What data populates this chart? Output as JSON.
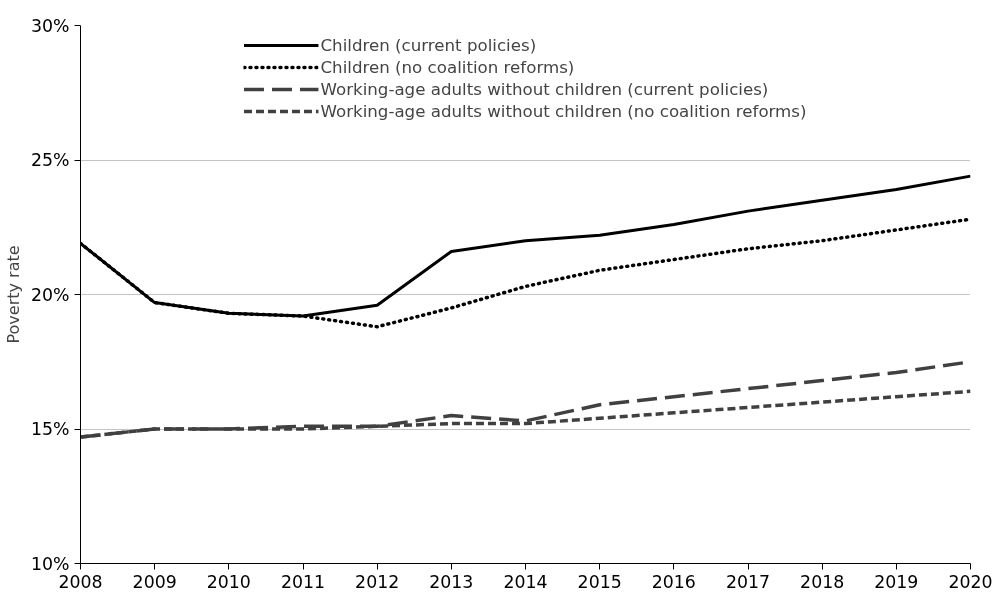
{
  "chart_data": {
    "type": "line",
    "ylabel": "Poverty rate",
    "x": [
      2008,
      2009,
      2010,
      2011,
      2012,
      2013,
      2014,
      2015,
      2016,
      2017,
      2018,
      2019,
      2020
    ],
    "xlim": [
      2008,
      2020
    ],
    "xticks": [
      2008,
      2009,
      2010,
      2011,
      2012,
      2013,
      2014,
      2015,
      2016,
      2017,
      2018,
      2019,
      2020
    ],
    "ylim": [
      10,
      30
    ],
    "yticks": [
      {
        "value": 10,
        "label": "10%"
      },
      {
        "value": 15,
        "label": "15%"
      },
      {
        "value": 20,
        "label": "20%"
      },
      {
        "value": 25,
        "label": "25%"
      },
      {
        "value": 30,
        "label": "30%"
      }
    ],
    "grid": "y",
    "legend": "top",
    "marker": "none",
    "series": [
      {
        "name": "Children (current policies)",
        "color": "#000000",
        "line_style": "solid",
        "values": [
          21.9,
          19.7,
          19.3,
          19.2,
          19.6,
          21.6,
          22.0,
          22.2,
          22.6,
          23.1,
          23.5,
          23.9,
          24.4
        ]
      },
      {
        "name": "Children (no coalition reforms)",
        "color": "#000000",
        "line_style": "dotted",
        "values": [
          21.9,
          19.7,
          19.3,
          19.2,
          18.8,
          19.5,
          20.3,
          20.9,
          21.3,
          21.7,
          22.0,
          22.4,
          22.8
        ]
      },
      {
        "name": "Working-age adults without children (current policies)",
        "color": "#404040",
        "line_style": "longdash",
        "values": [
          14.7,
          15.0,
          15.0,
          15.1,
          15.1,
          15.5,
          15.3,
          15.9,
          16.2,
          16.5,
          16.8,
          17.1,
          17.5
        ]
      },
      {
        "name": "Working-age adults without children (no coalition reforms)",
        "color": "#404040",
        "line_style": "dashed",
        "values": [
          14.7,
          15.0,
          15.0,
          15.0,
          15.1,
          15.2,
          15.2,
          15.4,
          15.6,
          15.8,
          16.0,
          16.2,
          16.4
        ]
      }
    ]
  }
}
